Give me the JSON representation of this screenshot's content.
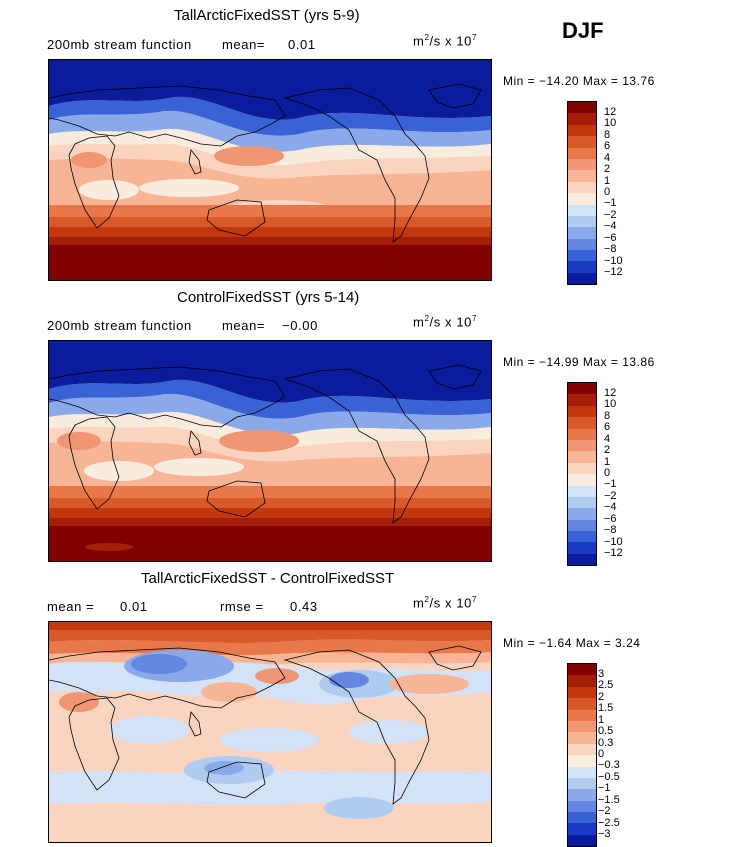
{
  "season": "DJF",
  "units_prefix": "m",
  "units_power": "2",
  "units_mid": "/s  x  10",
  "units_exp": "7",
  "panels": [
    {
      "title": "TallArcticFixedSST (yrs 5-9)",
      "sub_left": "200mb  stream  function",
      "mean_label": "mean=",
      "mean_value": "0.01",
      "minmax": "Min  =  −14.20  Max  =   13.76",
      "legend_labels": [
        "12",
        "10",
        "8",
        "6",
        "4",
        "2",
        "1",
        "0",
        "−1",
        "−2",
        "−4",
        "−6",
        "−8",
        "−10",
        "−12"
      ],
      "legend_colors": [
        "#800000",
        "#a31f0a",
        "#c3370e",
        "#d95a29",
        "#e8774a",
        "#f19673",
        "#f7b596",
        "#fbd4bf",
        "#f8ecdf",
        "#d3e2f6",
        "#b0cbf0",
        "#8aa9ea",
        "#6187e0",
        "#3862d6",
        "#1b3cc2",
        "#0a1c9c"
      ]
    },
    {
      "title": "ControlFixedSST (yrs 5-14)",
      "sub_left": "200mb  stream  function",
      "mean_label": "mean=",
      "mean_value": "−0.00",
      "minmax": "Min  =  −14.99  Max  =   13.86",
      "legend_labels": [
        "12",
        "10",
        "8",
        "6",
        "4",
        "2",
        "1",
        "0",
        "−1",
        "−2",
        "−4",
        "−6",
        "−8",
        "−10",
        "−12"
      ],
      "legend_colors": [
        "#800000",
        "#a31f0a",
        "#c3370e",
        "#d95a29",
        "#e8774a",
        "#f19673",
        "#f7b596",
        "#fbd4bf",
        "#f8ecdf",
        "#d3e2f6",
        "#b0cbf0",
        "#8aa9ea",
        "#6187e0",
        "#3862d6",
        "#1b3cc2",
        "#0a1c9c"
      ]
    },
    {
      "title": "TallArcticFixedSST - ControlFixedSST",
      "mean_label": "mean  =",
      "mean_value": "0.01",
      "rmse_label": "rmse  =",
      "rmse_value": "0.43",
      "minmax": "Min  =   −1.64  Max  =     3.24",
      "legend_labels": [
        "3",
        "2.5",
        "2",
        "1.5",
        "1",
        "0.5",
        "0.3",
        "0",
        "−0.3",
        "−0.5",
        "−1",
        "−1.5",
        "−2",
        "−2.5",
        "−3"
      ],
      "legend_colors": [
        "#800000",
        "#a31f0a",
        "#c3370e",
        "#d95a29",
        "#e8774a",
        "#f19673",
        "#f7b596",
        "#fbd4bf",
        "#f8ecdf",
        "#d3e2f6",
        "#b0cbf0",
        "#8aa9ea",
        "#6187e0",
        "#3862d6",
        "#1b3cc2",
        "#0a1c9c"
      ]
    }
  ]
}
